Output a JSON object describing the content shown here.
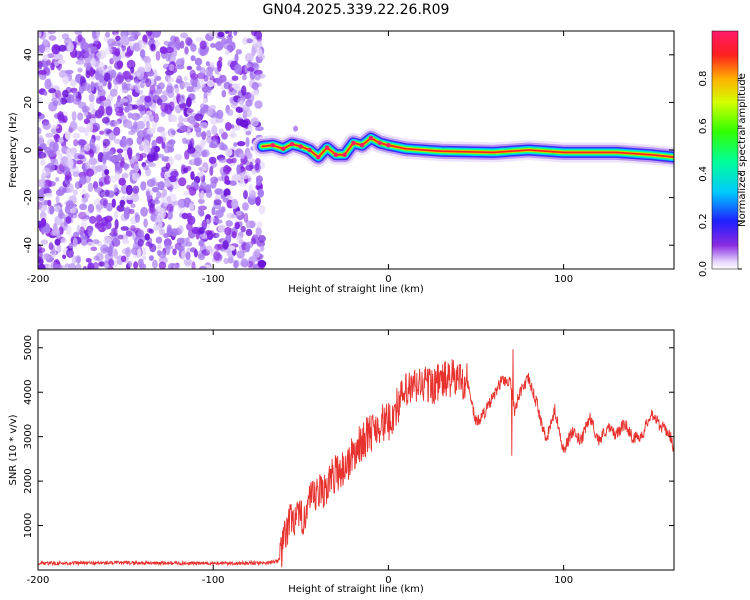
{
  "title": "GN04.2025.339.22.26.R09",
  "chart_data": [
    {
      "type": "heatmap",
      "xlabel": "Height of straight line (km)",
      "ylabel": "Frequency (Hz)",
      "xlim": [
        -200,
        163
      ],
      "ylim": [
        -50,
        50
      ],
      "xticks": [
        "-200",
        "-100",
        "0",
        "100"
      ],
      "yticks": [
        "40",
        "20",
        "0",
        "-20",
        "-40"
      ],
      "noise_region_end": -72,
      "ridge": {
        "x": [
          -72,
          -66,
          -60,
          -55,
          -50,
          -45,
          -40,
          -35,
          -30,
          -25,
          -20,
          -15,
          -10,
          -5,
          0,
          10,
          30,
          60,
          80,
          100,
          130,
          150,
          163
        ],
        "freq": [
          1.5,
          2,
          0.5,
          2.5,
          1.5,
          0,
          -3,
          1,
          -2,
          -2,
          3,
          2,
          5,
          3,
          2,
          0.5,
          -0.5,
          -1,
          0,
          -1,
          -1,
          -2,
          -3
        ]
      },
      "colorbar": {
        "label": "Normalized spectral amplitude",
        "range": [
          0,
          1
        ],
        "ticks": [
          "0.0",
          "0.2",
          "0.4",
          "0.6",
          "0.8"
        ]
      }
    },
    {
      "type": "line",
      "xlabel": "Height of straight line (km)",
      "ylabel": "SNR (10 * v/v)",
      "xlim": [
        -200,
        163
      ],
      "ylim": [
        0,
        5400
      ],
      "xticks": [
        "-200",
        "-100",
        "0",
        "100"
      ],
      "yticks": [
        "1000",
        "2000",
        "3000",
        "4000",
        "5000"
      ],
      "color": "#e8322e",
      "series": [
        {
          "name": "SNR",
          "x": [
            -200,
            -150,
            -100,
            -70,
            -62,
            -58,
            -55,
            -50,
            -45,
            -40,
            -35,
            -30,
            -25,
            -20,
            -15,
            -10,
            -5,
            0,
            5,
            10,
            15,
            20,
            25,
            30,
            35,
            40,
            45,
            50,
            55,
            60,
            65,
            70,
            72,
            75,
            80,
            85,
            90,
            95,
            100,
            105,
            110,
            115,
            120,
            125,
            130,
            135,
            140,
            145,
            150,
            155,
            160,
            163
          ],
          "y": [
            150,
            160,
            150,
            160,
            220,
            900,
            1200,
            1100,
            1500,
            1700,
            1900,
            2200,
            2300,
            2600,
            2900,
            3100,
            3300,
            3300,
            3700,
            4000,
            4100,
            4200,
            4150,
            4250,
            4300,
            4300,
            4250,
            3300,
            3550,
            3900,
            4300,
            4200,
            3600,
            4000,
            4300,
            3700,
            2900,
            3600,
            2700,
            3100,
            2900,
            3450,
            2900,
            3200,
            3050,
            3300,
            2950,
            3050,
            3550,
            3250,
            3100,
            2750
          ]
        }
      ]
    }
  ]
}
